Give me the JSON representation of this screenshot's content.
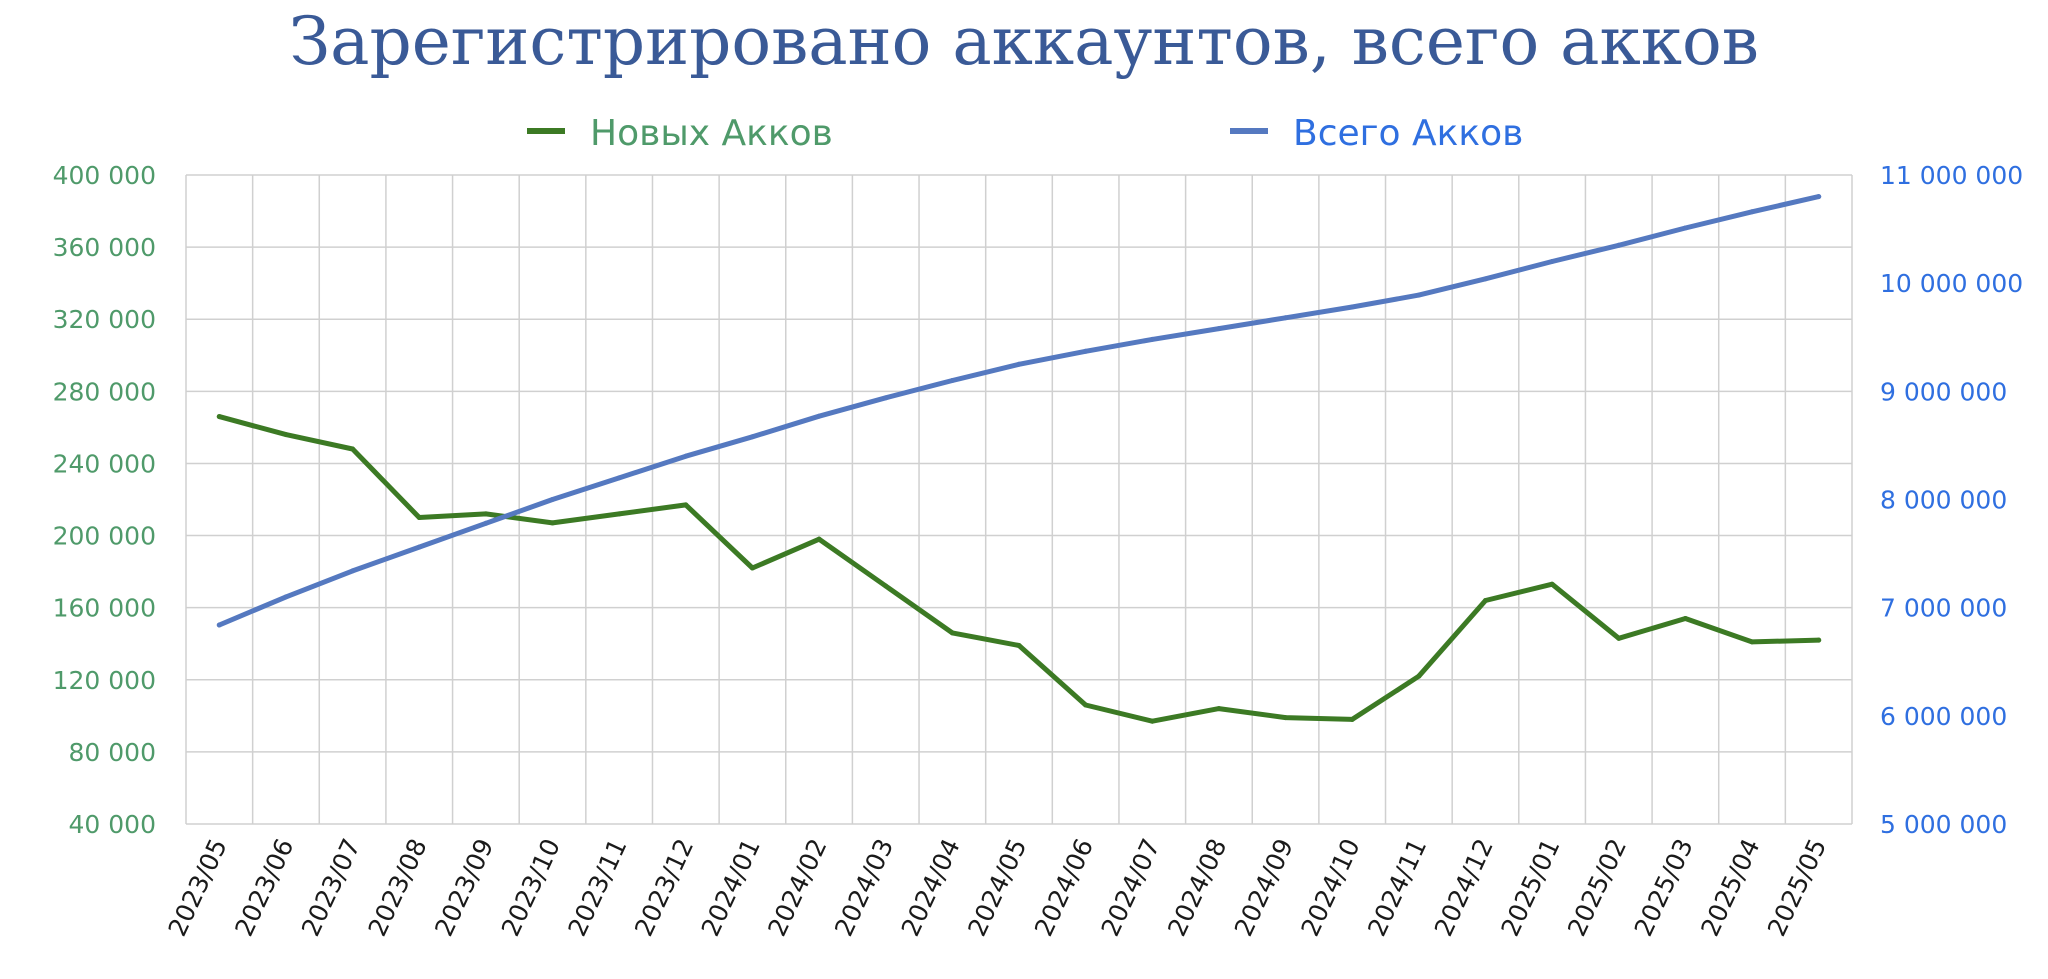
{
  "chart_data": {
    "type": "line",
    "title": "Зарегистрировано аккаунтов, всего акков",
    "legend_position": "top",
    "grid": true,
    "colors": {
      "title": "#3a5a97",
      "new_series": "#3c7a24",
      "new_text": "#4f9a6a",
      "total_series": "#5579c0",
      "total_text": "#2f6fe0",
      "grid": "#d0d0d0"
    },
    "categories": [
      "2023/05",
      "2023/06",
      "2023/07",
      "2023/08",
      "2023/09",
      "2023/10",
      "2023/11",
      "2023/12",
      "2024/01",
      "2024/02",
      "2024/03",
      "2024/04",
      "2024/05",
      "2024/06",
      "2024/07",
      "2024/08",
      "2024/09",
      "2024/10",
      "2024/11",
      "2024/12",
      "2025/01",
      "2025/02",
      "2025/03",
      "2025/04",
      "2025/05"
    ],
    "y_left": {
      "min": 40000,
      "max": 400000,
      "ticks": [
        40000,
        80000,
        120000,
        160000,
        200000,
        240000,
        280000,
        320000,
        360000,
        400000
      ],
      "tick_labels": [
        "40 000",
        "80 000",
        "120 000",
        "160 000",
        "200 000",
        "240 000",
        "280 000",
        "320 000",
        "360 000",
        "400 000"
      ]
    },
    "y_right": {
      "min": 5000000,
      "max": 11000000,
      "ticks": [
        5000000,
        6000000,
        7000000,
        8000000,
        9000000,
        10000000,
        11000000
      ],
      "tick_labels": [
        "5 000 000",
        "6 000 000",
        "7 000 000",
        "8 000 000",
        "9 000 000",
        "10 000 000",
        "11 000 000"
      ]
    },
    "series": [
      {
        "name": "Новых Акков",
        "axis": "left",
        "values": [
          266000,
          256000,
          248000,
          210000,
          212000,
          207000,
          212000,
          217000,
          182000,
          198000,
          172000,
          146000,
          139000,
          106000,
          97000,
          104000,
          99000,
          98000,
          122000,
          164000,
          173000,
          143000,
          154000,
          141000,
          142000
        ]
      },
      {
        "name": "Всего Акков",
        "axis": "right",
        "values": [
          6840000,
          7100000,
          7340000,
          7560000,
          7780000,
          8000000,
          8200000,
          8400000,
          8580000,
          8770000,
          8940000,
          9100000,
          9250000,
          9370000,
          9480000,
          9580000,
          9680000,
          9780000,
          9890000,
          10040000,
          10200000,
          10350000,
          10510000,
          10660000,
          10800000
        ]
      }
    ]
  }
}
